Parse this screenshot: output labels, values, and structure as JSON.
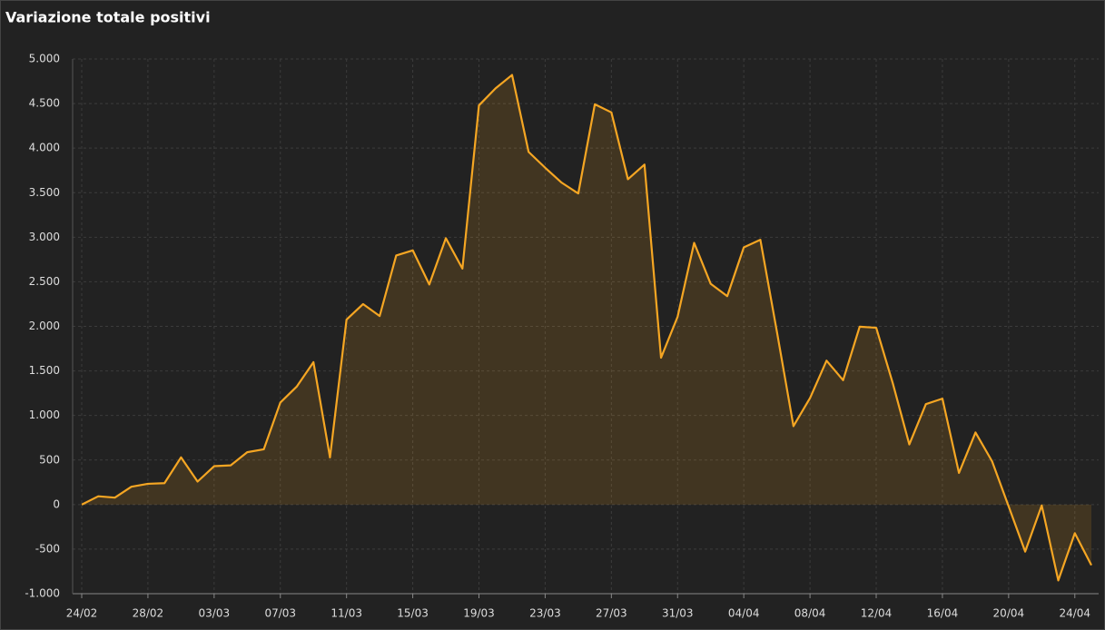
{
  "chart_data": {
    "type": "area",
    "title": "Variazione totale positivi",
    "categories": [
      "24/02",
      null,
      null,
      null,
      "28/02",
      null,
      null,
      null,
      "03/03",
      null,
      null,
      null,
      "07/03",
      null,
      null,
      null,
      "11/03",
      null,
      null,
      null,
      "15/03",
      null,
      null,
      null,
      "19/03",
      null,
      null,
      null,
      "23/03",
      null,
      null,
      null,
      "27/03",
      null,
      null,
      null,
      "31/03",
      null,
      null,
      null,
      "04/04",
      null,
      null,
      null,
      "08/04",
      null,
      null,
      null,
      "12/04",
      null,
      null,
      null,
      "16/04",
      null,
      null,
      null,
      "20/04",
      null,
      null,
      null,
      "24/04",
      null
    ],
    "values": [
      0,
      93,
      78,
      200,
      233,
      240,
      530,
      258,
      431,
      440,
      588,
      620,
      1145,
      1326,
      1598,
      529,
      2076,
      2250,
      2116,
      2795,
      2853,
      2470,
      2989,
      2648,
      4480,
      4670,
      4821,
      3957,
      3780,
      3612,
      3491,
      4492,
      4401,
      3651,
      3815,
      1648,
      2107,
      2937,
      2477,
      2339,
      2886,
      2972,
      1941,
      880,
      1195,
      1615,
      1396,
      1996,
      1984,
      1363,
      675,
      1127,
      1189,
      355,
      809,
      486,
      -20,
      -528,
      -10,
      -851,
      -321,
      -680
    ],
    "color": "#f5a623",
    "ylim": [
      -1000,
      5000
    ],
    "yticks": [
      {
        "value": -1000,
        "label": "-1.000"
      },
      -500,
      0,
      500,
      {
        "value": 1000,
        "label": "1.000"
      },
      {
        "value": 1500,
        "label": "1.500"
      },
      {
        "value": 2000,
        "label": "2.000"
      },
      {
        "value": 2500,
        "label": "2.500"
      },
      {
        "value": 3000,
        "label": "3.000"
      },
      {
        "value": 3500,
        "label": "3.500"
      },
      {
        "value": 4000,
        "label": "4.000"
      },
      {
        "value": 4500,
        "label": "4.500"
      },
      {
        "value": 5000,
        "label": "5.000"
      }
    ],
    "grid": true
  }
}
